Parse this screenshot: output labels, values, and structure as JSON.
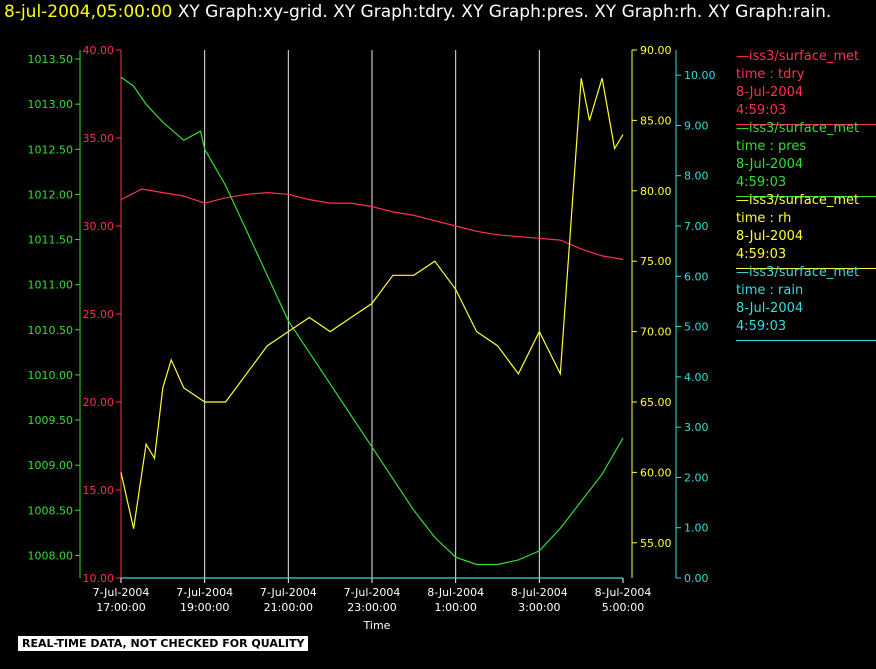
{
  "header": {
    "timestamp": "8-jul-2004,05:00:00",
    "graphs": "XY Graph:xy-grid.  XY Graph:tdry.  XY Graph:pres.  XY Graph:rh.  XY Graph:rain."
  },
  "legend": [
    {
      "name": "—iss3/surface_met",
      "var": "time : tdry",
      "date": "8-Jul-2004",
      "time": "4:59:03",
      "color": "#ff3050"
    },
    {
      "name": "—iss3/surface_met",
      "var": "time : pres",
      "date": "8-Jul-2004",
      "time": "4:59:03",
      "color": "#33dd33"
    },
    {
      "name": "—iss3/surface_met",
      "var": "time : rh",
      "date": "8-Jul-2004",
      "time": "4:59:03",
      "color": "#ffff33"
    },
    {
      "name": "—iss3/surface_met",
      "var": "time : rain",
      "date": "8-Jul-2004",
      "time": "4:59:03",
      "color": "#33dddd"
    }
  ],
  "footer": "REAL-TIME DATA, NOT CHECKED FOR QUALITY",
  "chart_data": {
    "type": "line",
    "xlabel": "Time",
    "x_ticks": [
      {
        "date": "7-Jul-2004",
        "time": "17:00:00"
      },
      {
        "date": "7-Jul-2004",
        "time": "19:00:00"
      },
      {
        "date": "7-Jul-2004",
        "time": "21:00:00"
      },
      {
        "date": "7-Jul-2004",
        "time": "23:00:00"
      },
      {
        "date": "8-Jul-2004",
        "time": "1:00:00"
      },
      {
        "date": "8-Jul-2004",
        "time": "3:00:00"
      },
      {
        "date": "8-Jul-2004",
        "time": "5:00:00"
      }
    ],
    "xlim": [
      "2004-07-07 17:00",
      "2004-07-08 05:00"
    ],
    "grid": "vertical",
    "axes": {
      "pres": {
        "color": "#33dd33",
        "ylim": [
          1007.75,
          1013.6
        ],
        "ticks": [
          "1008.00",
          "1008.50",
          "1009.00",
          "1009.50",
          "1010.00",
          "1010.50",
          "1011.00",
          "1011.50",
          "1012.00",
          "1012.50",
          "1013.00",
          "1013.50"
        ],
        "tick_values": [
          1008,
          1008.5,
          1009,
          1009.5,
          1010,
          1010.5,
          1011,
          1011.5,
          1012,
          1012.5,
          1013,
          1013.5
        ]
      },
      "tdry": {
        "color": "#ff3050",
        "ylim": [
          10,
          40
        ],
        "ticks": [
          "10.00",
          "15.00",
          "20.00",
          "25.00",
          "30.00",
          "35.00",
          "40.00"
        ],
        "tick_values": [
          10,
          15,
          20,
          25,
          30,
          35,
          40
        ]
      },
      "rh": {
        "color": "#ffff33",
        "ylim": [
          52.5,
          90
        ],
        "ticks": [
          "55.00",
          "60.00",
          "65.00",
          "70.00",
          "75.00",
          "80.00",
          "85.00",
          "90.00"
        ],
        "tick_values": [
          55,
          60,
          65,
          70,
          75,
          80,
          85,
          90
        ]
      },
      "rain": {
        "color": "#33dddd",
        "ylim": [
          0,
          10.5
        ],
        "ticks": [
          "0.00",
          "1.00",
          "2.00",
          "3.00",
          "4.00",
          "5.00",
          "6.00",
          "7.00",
          "8.00",
          "9.00",
          "10.00"
        ],
        "tick_values": [
          0,
          1,
          2,
          3,
          4,
          5,
          6,
          7,
          8,
          9,
          10
        ]
      }
    },
    "series": [
      {
        "name": "tdry",
        "axis": "tdry",
        "color": "#ff3050",
        "x_hours": [
          0,
          0.5,
          1,
          1.5,
          2,
          2.5,
          3,
          3.5,
          4,
          4.5,
          5,
          5.5,
          6,
          6.5,
          7,
          7.5,
          8,
          8.5,
          9,
          9.5,
          10,
          10.5,
          11,
          11.5,
          12
        ],
        "values": [
          31.5,
          32.1,
          31.9,
          31.7,
          31.3,
          31.6,
          31.8,
          31.9,
          31.8,
          31.5,
          31.3,
          31.3,
          31.1,
          30.8,
          30.6,
          30.3,
          30.0,
          29.7,
          29.5,
          29.4,
          29.3,
          29.2,
          28.7,
          28.3,
          28.1
        ]
      },
      {
        "name": "pres",
        "axis": "pres",
        "color": "#33dd33",
        "x_hours": [
          0,
          0.3,
          0.6,
          1,
          1.5,
          1.9,
          2,
          2.5,
          3,
          3.5,
          4,
          4.5,
          5,
          5.5,
          6,
          6.5,
          7,
          7.5,
          8,
          8.5,
          9,
          9.5,
          10,
          10.5,
          11,
          11.5,
          12
        ],
        "values": [
          1013.3,
          1013.2,
          1013.0,
          1012.8,
          1012.6,
          1012.7,
          1012.5,
          1012.1,
          1011.6,
          1011.1,
          1010.6,
          1010.25,
          1009.9,
          1009.55,
          1009.2,
          1008.85,
          1008.5,
          1008.2,
          1007.98,
          1007.9,
          1007.9,
          1007.95,
          1008.05,
          1008.3,
          1008.6,
          1008.9,
          1009.3
        ]
      },
      {
        "name": "rh",
        "axis": "rh",
        "color": "#ffff33",
        "x_hours": [
          0,
          0.3,
          0.6,
          0.8,
          1,
          1.2,
          1.5,
          2,
          2.5,
          3,
          3.5,
          4,
          4.5,
          5,
          5.5,
          6,
          6.5,
          7,
          7.5,
          8,
          8.5,
          9,
          9.5,
          10,
          10.5,
          11,
          11.2,
          11.5,
          11.8,
          12
        ],
        "values": [
          60,
          56,
          62,
          61,
          66,
          68,
          66,
          65,
          65,
          67,
          69,
          70,
          71,
          70,
          71,
          72,
          74,
          74,
          75,
          73,
          70,
          69,
          67,
          70,
          67,
          88,
          85,
          88,
          83,
          84
        ]
      },
      {
        "name": "rain",
        "axis": "rain",
        "color": "#33dddd",
        "x_hours": [
          0,
          12
        ],
        "values": [
          0,
          0
        ]
      }
    ]
  }
}
